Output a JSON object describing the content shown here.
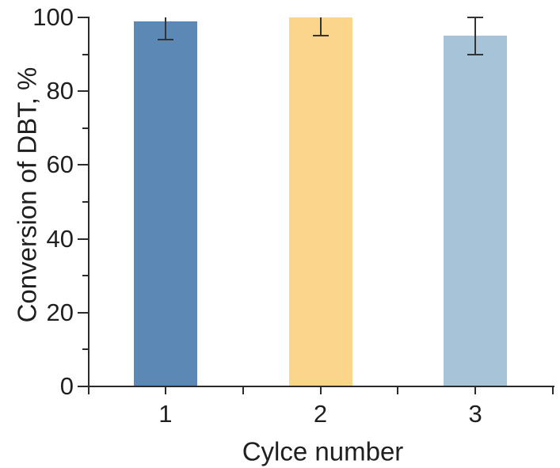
{
  "chart_data": {
    "type": "bar",
    "title": "",
    "xlabel": "Cylce number",
    "ylabel": "Conversion of DBT, %",
    "categories": [
      "1",
      "2",
      "3"
    ],
    "values": [
      99,
      100,
      95
    ],
    "errors": [
      5,
      5,
      5
    ],
    "bar_colors": [
      "#5b88b4",
      "#fcd58d",
      "#a7c3d8"
    ],
    "ylim": [
      0,
      100
    ],
    "y_major_ticks": [
      0,
      20,
      40,
      60,
      80,
      100
    ],
    "y_minor_step": 10,
    "grid": "off",
    "legend": "none",
    "axis_color": "#2b2b2b",
    "error_bar_color": "#333333"
  }
}
